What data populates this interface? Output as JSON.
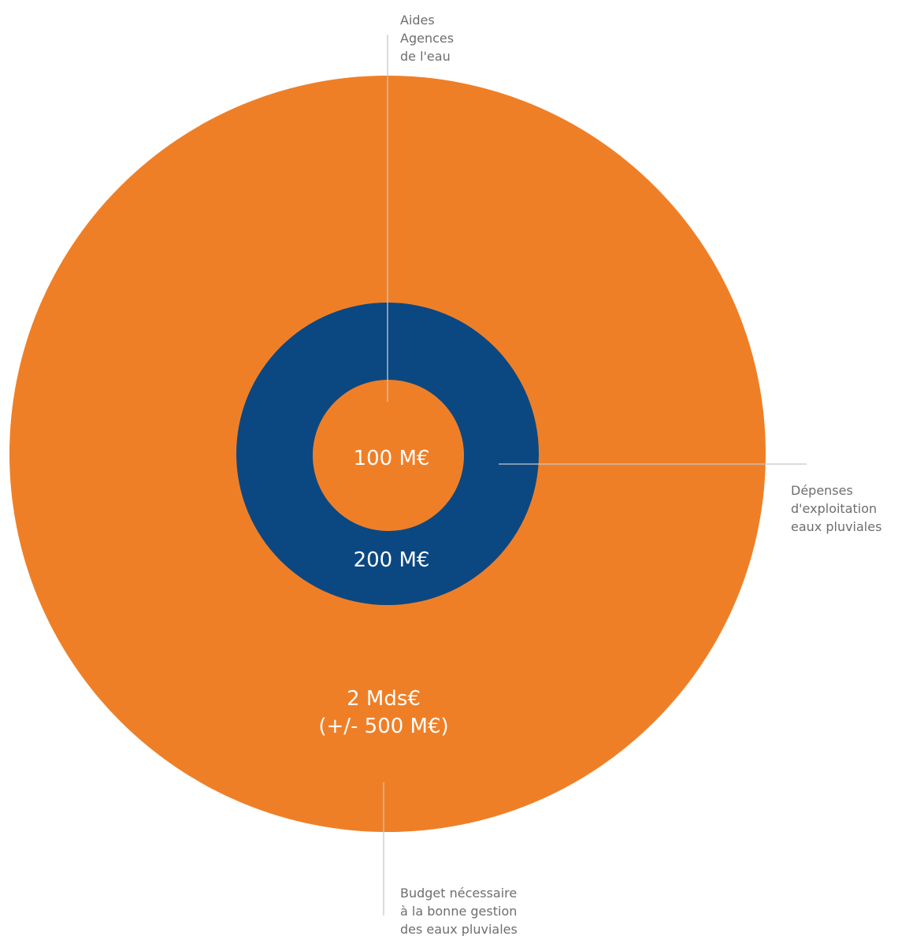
{
  "chart_data": {
    "type": "nested-circles",
    "series": [
      {
        "name": "Budget nécessaire à la bonne gestion des eaux pluviales",
        "label_lines": [
          "Budget nécessaire",
          "à la bonne gestion",
          "des eaux pluviales"
        ],
        "value_lines": [
          "2 Mds€",
          "(+/- 500 M€)"
        ],
        "value_meur": 2000,
        "uncertainty_meur": 500,
        "color": "#ef7f27"
      },
      {
        "name": "Dépenses d'exploitation eaux pluviales",
        "label_lines": [
          "Dépenses",
          "d'exploitation",
          "eaux pluviales"
        ],
        "value_lines": [
          "200 M€"
        ],
        "value_meur": 200,
        "color": "#0b4882"
      },
      {
        "name": "Aides Agences de l'eau",
        "label_lines": [
          "Aides",
          "Agences",
          "de l'eau"
        ],
        "value_lines": [
          "100 M€"
        ],
        "value_meur": 100,
        "color": "#ef7f27"
      }
    ],
    "leader_color": "#c7c8ca",
    "callout_color": "#6d6e71",
    "value_text_color": "#ffffff"
  }
}
